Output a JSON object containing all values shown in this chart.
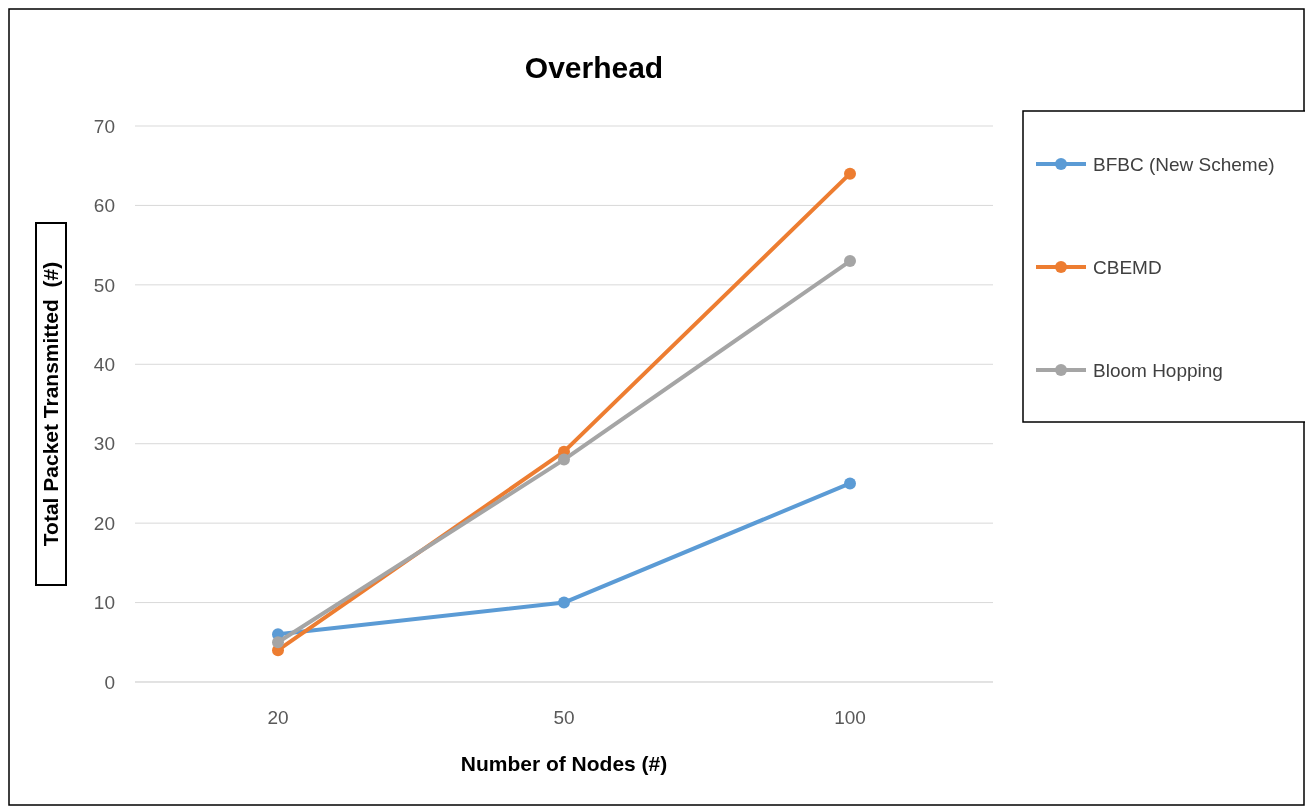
{
  "chart_data": {
    "type": "line",
    "title": "Overhead",
    "xlabel": "Number of Nodes (#)",
    "ylabel": "Total Packet Transmitted  (#)",
    "categories": [
      "20",
      "50",
      "100"
    ],
    "series": [
      {
        "name": "BFBC (New Scheme)",
        "color": "#5b9bd5",
        "values": [
          6,
          10,
          25
        ]
      },
      {
        "name": "CBEMD",
        "color": "#ed7d31",
        "values": [
          4,
          29,
          64
        ]
      },
      {
        "name": "Bloom Hopping",
        "color": "#a5a5a5",
        "values": [
          5,
          28,
          53
        ]
      }
    ],
    "ylim": [
      0,
      70
    ],
    "yticks": [
      0,
      10,
      20,
      30,
      40,
      50,
      60,
      70
    ],
    "grid": "y",
    "legend": "right",
    "marker": "circle"
  }
}
